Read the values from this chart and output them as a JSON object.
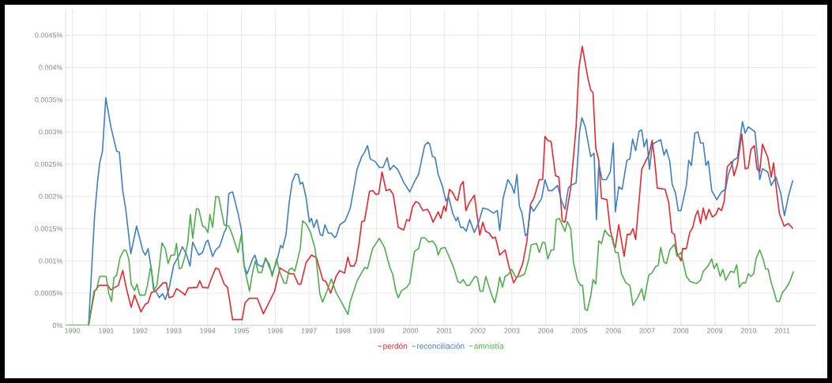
{
  "chart_data": {
    "type": "line",
    "xlim": [
      1989.8,
      2012
    ],
    "ylim": [
      0,
      0.0049
    ],
    "xticks": [
      1990,
      1991,
      1992,
      1993,
      1994,
      1995,
      1996,
      1997,
      1998,
      1999,
      2000,
      2001,
      2002,
      2003,
      2004,
      2005,
      2006,
      2007,
      2008,
      2009,
      2010,
      2011
    ],
    "yticks": [
      {
        "value": 0,
        "label": "0%"
      },
      {
        "value": 0.0005,
        "label": "0.0005%"
      },
      {
        "value": 0.001,
        "label": "0.001%"
      },
      {
        "value": 0.0015,
        "label": "0.0015%"
      },
      {
        "value": 0.002,
        "label": "0.002%"
      },
      {
        "value": 0.0025,
        "label": "0.0025%"
      },
      {
        "value": 0.003,
        "label": "0.003%"
      },
      {
        "value": 0.0035,
        "label": "0.0035%"
      },
      {
        "value": 0.004,
        "label": "0.004%"
      },
      {
        "value": 0.0045,
        "label": "0.0045%"
      }
    ],
    "grid": true,
    "legend": "bottom",
    "marker": "none",
    "line_style": "solid",
    "series": [
      {
        "name": "perdón",
        "color": "#e8262b",
        "x": [
          1990.48,
          1990.66,
          1990.79,
          1991.05,
          1991.14,
          1991.26,
          1991.36,
          1991.49,
          1991.6,
          1991.74,
          1991.84,
          1992.03,
          1992.16,
          1992.24,
          1992.34,
          1992.46,
          1992.69,
          1992.78,
          1992.86,
          1992.98,
          1993.08,
          1993.25,
          1993.33,
          1993.43,
          1993.69,
          1993.77,
          1993.85,
          1994.01,
          1994.1,
          1994.24,
          1994.33,
          1994.49,
          1994.59,
          1994.74,
          1995.02,
          1995.11,
          1995.23,
          1995.47,
          1995.65,
          1995.98,
          1996.14,
          1996.26,
          1996.45,
          1996.55,
          1996.68,
          1996.76,
          1996.91,
          1997.07,
          1997.22,
          1997.41,
          1997.5,
          1997.64,
          1997.8,
          1997.91,
          1998.05,
          1998.15,
          1998.22,
          1998.33,
          1998.4,
          1998.48,
          1998.56,
          1998.64,
          1998.79,
          1998.89,
          1998.98,
          1999.06,
          1999.16,
          1999.28,
          1999.39,
          1999.49,
          1999.64,
          1999.8,
          1999.89,
          1999.97,
          2000.06,
          2000.16,
          2000.24,
          2000.37,
          2000.5,
          2000.57,
          2000.67,
          2000.82,
          2000.9,
          2000.99,
          2001.05,
          2001.15,
          2001.25,
          2001.35,
          2001.4,
          2001.48,
          2001.56,
          2001.64,
          2001.74,
          2001.89,
          2002.05,
          2002.14,
          2002.22,
          2002.33,
          2002.43,
          2002.51,
          2002.64,
          2002.8,
          2002.91,
          2003.05,
          2003.19,
          2003.32,
          2003.44,
          2003.55,
          2003.65,
          2003.81,
          2003.91,
          2003.98,
          2004.06,
          2004.16,
          2004.29,
          2004.39,
          2004.49,
          2004.57,
          2004.74,
          2004.9,
          2004.98,
          2005.08,
          2005.25,
          2005.33,
          2005.4,
          2005.48,
          2005.57,
          2005.65,
          2005.81,
          2005.91,
          2006.01,
          2006.06,
          2006.16,
          2006.32,
          2006.41,
          2006.5,
          2006.58,
          2006.66,
          2006.76,
          2006.84,
          2006.95,
          2007.05,
          2007.15,
          2007.22,
          2007.3,
          2007.53,
          2007.64,
          2007.73,
          2007.81,
          2007.88,
          2008.0,
          2008.05,
          2008.16,
          2008.26,
          2008.35,
          2008.43,
          2008.5,
          2008.58,
          2008.66,
          2008.74,
          2008.83,
          2008.93,
          2009.03,
          2009.11,
          2009.2,
          2009.28,
          2009.37,
          2009.5,
          2009.57,
          2009.67,
          2009.8,
          2009.9,
          2009.99,
          2010.07,
          2010.17,
          2010.25,
          2010.33,
          2010.41,
          2010.57,
          2010.67,
          2010.74,
          2010.81,
          2010.91,
          2011.05,
          2011.18,
          2011.31
        ],
        "values": [
          0,
          0.00053,
          0.00062,
          0.00062,
          0.00055,
          0.00059,
          0.00062,
          0.00085,
          0.00057,
          0.00028,
          0.00047,
          0.00021,
          0.00033,
          0.00035,
          0.00051,
          0.00053,
          0.00066,
          0.00066,
          0.00043,
          0.00045,
          0.00057,
          0.00051,
          0.00047,
          0.00058,
          0.00059,
          0.00069,
          0.00059,
          0.00058,
          0.00071,
          0.00089,
          0.00087,
          0.00064,
          0.00059,
          9e-05,
          9e-05,
          0.00035,
          0.00042,
          0.00042,
          0.00018,
          0.00053,
          0.00089,
          0.00085,
          0.0008,
          0.0008,
          0.00064,
          0.00064,
          0.00097,
          0.00109,
          0.00105,
          0.0007,
          0.00068,
          0.0005,
          0.00076,
          0.00085,
          0.00081,
          0.00106,
          0.00092,
          0.00092,
          0.001,
          0.00127,
          0.00161,
          0.00162,
          0.00208,
          0.00209,
          0.00203,
          0.00204,
          0.00238,
          0.00209,
          0.00211,
          0.00203,
          0.00152,
          0.00148,
          0.00164,
          0.00162,
          0.00184,
          0.00192,
          0.0019,
          0.00178,
          0.0018,
          0.00174,
          0.0016,
          0.00176,
          0.00166,
          0.00185,
          0.00177,
          0.00211,
          0.00206,
          0.00195,
          0.00194,
          0.00217,
          0.00223,
          0.00178,
          0.0019,
          0.00202,
          0.0014,
          0.0016,
          0.00146,
          0.00143,
          0.00135,
          0.00137,
          0.00109,
          0.00117,
          0.00092,
          0.00066,
          0.00078,
          0.00096,
          0.00129,
          0.00188,
          0.00197,
          0.00226,
          0.00226,
          0.00293,
          0.00287,
          0.00285,
          0.00232,
          0.0023,
          0.00162,
          0.0016,
          0.00213,
          0.00308,
          0.00398,
          0.00433,
          0.00383,
          0.00365,
          0.00361,
          0.00275,
          0.00256,
          0.00197,
          0.00195,
          0.00148,
          0.00125,
          0.00121,
          0.00156,
          0.00107,
          0.00141,
          0.00141,
          0.0015,
          0.00133,
          0.00193,
          0.00242,
          0.00254,
          0.00264,
          0.00287,
          0.00258,
          0.00213,
          0.00211,
          0.0019,
          0.00144,
          0.00141,
          0.00113,
          0.001,
          0.00119,
          0.00119,
          0.00144,
          0.00152,
          0.0017,
          0.00178,
          0.00158,
          0.00182,
          0.00164,
          0.0018,
          0.00168,
          0.00172,
          0.00182,
          0.00178,
          0.00193,
          0.00246,
          0.00254,
          0.00232,
          0.0025,
          0.00297,
          0.00243,
          0.00244,
          0.00273,
          0.00279,
          0.00243,
          0.00238,
          0.00281,
          0.0026,
          0.0023,
          0.00252,
          0.00217,
          0.00174,
          0.00154,
          0.00158,
          0.0015
        ]
      },
      {
        "name": "reconciliación",
        "color": "#3e7fc1",
        "x": [
          1990.48,
          1990.66,
          1990.75,
          1990.81,
          1990.89,
          1990.99,
          1991.14,
          1991.31,
          1991.39,
          1991.49,
          1991.58,
          1991.73,
          1991.9,
          1992.09,
          1992.16,
          1992.24,
          1992.34,
          1992.4,
          1992.47,
          1992.57,
          1992.67,
          1992.75,
          1992.86,
          1993.0,
          1993.16,
          1993.25,
          1993.37,
          1993.48,
          1993.56,
          1993.74,
          1993.85,
          1993.95,
          1994.01,
          1994.15,
          1994.24,
          1994.36,
          1994.49,
          1994.55,
          1994.63,
          1994.74,
          1994.9,
          1995.0,
          1995.08,
          1995.17,
          1995.33,
          1995.4,
          1995.48,
          1995.62,
          1995.73,
          1995.91,
          1996.04,
          1996.16,
          1996.22,
          1996.32,
          1996.41,
          1996.5,
          1996.6,
          1996.68,
          1996.74,
          1996.81,
          1996.91,
          1997.01,
          1997.07,
          1997.14,
          1997.23,
          1997.33,
          1997.4,
          1997.47,
          1997.57,
          1997.66,
          1997.76,
          1997.81,
          1997.91,
          1998.07,
          1998.22,
          1998.34,
          1998.42,
          1998.56,
          1998.65,
          1998.73,
          1998.81,
          1998.96,
          1999.08,
          1999.19,
          1999.31,
          1999.39,
          1999.5,
          1999.62,
          1999.81,
          1999.98,
          2000.12,
          2000.24,
          2000.32,
          2000.42,
          2000.51,
          2000.57,
          2000.65,
          2000.73,
          2000.82,
          2000.94,
          2001.05,
          2001.13,
          2001.25,
          2001.35,
          2001.4,
          2001.48,
          2001.56,
          2001.65,
          2001.75,
          2001.89,
          2002.02,
          2002.14,
          2002.29,
          2002.45,
          2002.57,
          2002.64,
          2002.74,
          2002.88,
          2002.99,
          2003.07,
          2003.15,
          2003.22,
          2003.3,
          2003.4,
          2003.46,
          2003.56,
          2003.64,
          2003.81,
          2003.88,
          2003.98,
          2004.08,
          2004.19,
          2004.35,
          2004.47,
          2004.57,
          2004.67,
          2004.74,
          2004.9,
          2005.0,
          2005.07,
          2005.17,
          2005.33,
          2005.43,
          2005.5,
          2005.57,
          2005.67,
          2005.79,
          2005.91,
          2006.0,
          2006.06,
          2006.16,
          2006.26,
          2006.4,
          2006.49,
          2006.57,
          2006.66,
          2006.76,
          2006.84,
          2006.91,
          2006.99,
          2007.07,
          2007.15,
          2007.22,
          2007.4,
          2007.5,
          2007.57,
          2007.67,
          2007.74,
          2007.84,
          2007.92,
          2008.0,
          2008.16,
          2008.23,
          2008.31,
          2008.41,
          2008.5,
          2008.58,
          2008.66,
          2008.74,
          2008.81,
          2008.91,
          2009.06,
          2009.2,
          2009.32,
          2009.4,
          2009.55,
          2009.67,
          2009.74,
          2009.82,
          2009.9,
          2009.99,
          2010.12,
          2010.19,
          2010.33,
          2010.41,
          2010.57,
          2010.67,
          2010.81,
          2010.95,
          2011.06,
          2011.18,
          2011.31
        ],
        "values": [
          0,
          0.00172,
          0.00225,
          0.00252,
          0.0027,
          0.00353,
          0.00308,
          0.0027,
          0.00269,
          0.00209,
          0.0018,
          0.00111,
          0.00154,
          0.00115,
          0.00109,
          0.00119,
          0.00086,
          0.00055,
          0.00053,
          0.00043,
          0.00049,
          0.0004,
          0.00057,
          0.00094,
          0.00109,
          0.00122,
          0.00111,
          0.00092,
          0.00129,
          0.00109,
          0.00113,
          0.00129,
          0.00132,
          0.00107,
          0.00117,
          0.00123,
          0.00144,
          0.0015,
          0.00205,
          0.00207,
          0.00174,
          0.00148,
          0.00092,
          0.0008,
          0.00103,
          0.00109,
          0.00094,
          0.00091,
          0.00103,
          0.0008,
          0.00098,
          0.00124,
          0.0012,
          0.00141,
          0.00189,
          0.00222,
          0.00235,
          0.00234,
          0.00219,
          0.00222,
          0.00199,
          0.0016,
          0.00166,
          0.00152,
          0.00164,
          0.00141,
          0.00139,
          0.00156,
          0.00143,
          0.00143,
          0.00136,
          0.00139,
          0.00156,
          0.00162,
          0.00182,
          0.00217,
          0.00242,
          0.00262,
          0.00269,
          0.00279,
          0.00258,
          0.00254,
          0.00245,
          0.00245,
          0.0026,
          0.00241,
          0.00248,
          0.00242,
          0.00221,
          0.00207,
          0.00223,
          0.00234,
          0.00254,
          0.00279,
          0.00284,
          0.00281,
          0.00262,
          0.0026,
          0.00234,
          0.00217,
          0.00193,
          0.00199,
          0.00174,
          0.00162,
          0.00168,
          0.00152,
          0.00152,
          0.00146,
          0.00164,
          0.00144,
          0.0016,
          0.00182,
          0.0018,
          0.00174,
          0.00178,
          0.00147,
          0.00197,
          0.00226,
          0.00217,
          0.00205,
          0.00234,
          0.00185,
          0.00174,
          0.00139,
          0.00143,
          0.00185,
          0.00177,
          0.00191,
          0.00197,
          0.00226,
          0.00209,
          0.00209,
          0.00217,
          0.00193,
          0.0018,
          0.00213,
          0.00217,
          0.00221,
          0.003,
          0.00322,
          0.00308,
          0.00262,
          0.00267,
          0.00164,
          0.0025,
          0.00226,
          0.00226,
          0.00238,
          0.00283,
          0.00176,
          0.00215,
          0.00211,
          0.00256,
          0.00258,
          0.00289,
          0.00271,
          0.00301,
          0.00303,
          0.00277,
          0.00289,
          0.00242,
          0.00279,
          0.00283,
          0.00288,
          0.00264,
          0.00273,
          0.00254,
          0.00219,
          0.00205,
          0.00178,
          0.00178,
          0.00217,
          0.00256,
          0.00248,
          0.00298,
          0.003,
          0.00283,
          0.00283,
          0.00248,
          0.00255,
          0.00209,
          0.00195,
          0.00207,
          0.00211,
          0.00234,
          0.00256,
          0.0026,
          0.00287,
          0.00316,
          0.00298,
          0.00308,
          0.00303,
          0.003,
          0.00226,
          0.00243,
          0.00238,
          0.00217,
          0.0023,
          0.00205,
          0.0017,
          0.00201,
          0.00225
        ]
      },
      {
        "name": "amnistía",
        "color": "#4eae4b",
        "x": [
          1989.82,
          1990.48,
          1990.64,
          1990.71,
          1990.81,
          1991.0,
          1991.08,
          1991.16,
          1991.23,
          1991.31,
          1991.41,
          1991.53,
          1991.59,
          1991.67,
          1991.74,
          1991.84,
          1991.91,
          1991.99,
          1992.15,
          1992.22,
          1992.32,
          1992.42,
          1992.5,
          1992.57,
          1992.65,
          1992.75,
          1992.83,
          1992.92,
          1993.02,
          1993.08,
          1993.16,
          1993.23,
          1993.33,
          1993.41,
          1993.49,
          1993.56,
          1993.67,
          1993.74,
          1993.85,
          1993.93,
          1994.01,
          1994.07,
          1994.15,
          1994.24,
          1994.33,
          1994.49,
          1994.63,
          1994.74,
          1994.9,
          1995.0,
          1995.08,
          1995.24,
          1995.33,
          1995.41,
          1995.5,
          1995.6,
          1995.71,
          1995.83,
          1995.91,
          1996.04,
          1996.14,
          1996.26,
          1996.33,
          1996.41,
          1996.49,
          1996.58,
          1996.74,
          1996.81,
          1996.91,
          1997.03,
          1997.18,
          1997.32,
          1997.4,
          1997.53,
          1997.66,
          1997.8,
          1997.95,
          1998.15,
          1998.22,
          1998.43,
          1998.56,
          1998.65,
          1998.73,
          1998.81,
          1998.88,
          1999.08,
          1999.23,
          1999.39,
          1999.47,
          1999.57,
          1999.64,
          1999.74,
          1999.89,
          1999.98,
          2000.12,
          2000.24,
          2000.32,
          2000.42,
          2000.55,
          2000.65,
          2000.76,
          2000.82,
          2000.9,
          2001.02,
          2001.09,
          2001.17,
          2001.29,
          2001.4,
          2001.48,
          2001.56,
          2001.66,
          2001.74,
          2001.91,
          2001.98,
          2002.06,
          2002.14,
          2002.23,
          2002.31,
          2002.39,
          2002.49,
          2002.57,
          2002.64,
          2002.72,
          2002.8,
          2002.9,
          2002.99,
          2003.11,
          2003.24,
          2003.38,
          2003.5,
          2003.57,
          2003.73,
          2003.81,
          2003.91,
          2003.98,
          2004.06,
          2004.16,
          2004.24,
          2004.31,
          2004.4,
          2004.47,
          2004.57,
          2004.64,
          2004.74,
          2004.82,
          2004.94,
          2005.03,
          2005.09,
          2005.16,
          2005.23,
          2005.33,
          2005.4,
          2005.48,
          2005.57,
          2005.65,
          2005.75,
          2005.87,
          2005.98,
          2006.06,
          2006.14,
          2006.24,
          2006.37,
          2006.49,
          2006.58,
          2006.72,
          2006.84,
          2006.91,
          2007.05,
          2007.15,
          2007.25,
          2007.33,
          2007.4,
          2007.5,
          2007.57,
          2007.67,
          2007.81,
          2007.88,
          2008.0,
          2008.16,
          2008.27,
          2008.46,
          2008.58,
          2008.66,
          2008.8,
          2008.91,
          2008.98,
          2009.06,
          2009.16,
          2009.24,
          2009.32,
          2009.47,
          2009.57,
          2009.65,
          2009.73,
          2009.82,
          2009.91,
          2009.99,
          2010.07,
          2010.15,
          2010.22,
          2010.33,
          2010.43,
          2010.5,
          2010.58,
          2010.67,
          2010.75,
          2010.83,
          2010.91,
          2011.0,
          2011.1,
          2011.22,
          2011.33
        ],
        "values": [
          0,
          0,
          0.00053,
          0.00055,
          0.00076,
          0.00076,
          0.00049,
          0.00037,
          0.00074,
          0.00078,
          0.00105,
          0.00117,
          0.00116,
          0.00103,
          0.00064,
          0.00054,
          0.00064,
          0.00047,
          0.00047,
          0.00062,
          0.00092,
          0.00055,
          0.00062,
          0.0009,
          0.00128,
          0.00119,
          0.00096,
          0.00109,
          0.00109,
          0.00127,
          0.00088,
          0.00089,
          0.00107,
          0.00127,
          0.00172,
          0.00135,
          0.00181,
          0.0018,
          0.00154,
          0.00152,
          0.00144,
          0.00172,
          0.00152,
          0.002,
          0.00199,
          0.00156,
          0.00154,
          0.00139,
          0.00113,
          0.00141,
          0.00092,
          0.00053,
          0.00082,
          0.001,
          0.00082,
          0.00082,
          0.00105,
          0.00094,
          0.00076,
          0.00103,
          0.00082,
          0.00066,
          0.00065,
          0.00086,
          0.00089,
          0.00084,
          0.00119,
          0.00162,
          0.00158,
          0.00146,
          0.00119,
          0.00049,
          0.00036,
          0.00053,
          0.00072,
          0.00051,
          0.00037,
          0.00017,
          0.00037,
          0.0007,
          0.00082,
          0.0009,
          0.00088,
          0.00105,
          0.00119,
          0.00135,
          0.00121,
          0.0009,
          0.0008,
          0.00053,
          0.00043,
          0.00054,
          0.00059,
          0.00066,
          0.00115,
          0.00119,
          0.00136,
          0.00136,
          0.00129,
          0.00131,
          0.00123,
          0.00109,
          0.00119,
          0.00121,
          0.00113,
          0.00103,
          0.00088,
          0.00068,
          0.00066,
          0.00071,
          0.00062,
          0.00062,
          0.00076,
          0.00074,
          0.00053,
          0.00053,
          0.00076,
          0.00062,
          0.00049,
          0.00035,
          0.00053,
          0.00075,
          0.00059,
          0.00076,
          0.00079,
          0.00087,
          0.00075,
          0.00076,
          0.0008,
          0.00103,
          0.00125,
          0.00127,
          0.00113,
          0.00129,
          0.00128,
          0.00103,
          0.00117,
          0.00117,
          0.00164,
          0.00166,
          0.00158,
          0.00146,
          0.00161,
          0.0015,
          0.00098,
          0.0007,
          0.00062,
          0.00062,
          0.00025,
          0.00023,
          0.00045,
          0.00071,
          0.00064,
          0.00131,
          0.00127,
          0.00148,
          0.00139,
          0.00137,
          0.00113,
          0.00113,
          0.0008,
          0.00066,
          0.00062,
          0.00031,
          0.00043,
          0.00057,
          0.00039,
          0.00078,
          0.00082,
          0.00091,
          0.00093,
          0.00121,
          0.00098,
          0.00096,
          0.00117,
          0.00126,
          0.00107,
          0.00113,
          0.00076,
          0.00068,
          0.00065,
          0.0007,
          0.00084,
          0.00092,
          0.00103,
          0.00088,
          0.00096,
          0.00076,
          0.00087,
          0.0007,
          0.00084,
          0.00082,
          0.00094,
          0.00059,
          0.00066,
          0.00066,
          0.0008,
          0.00076,
          0.0008,
          0.00103,
          0.00117,
          0.00103,
          0.00088,
          0.00087,
          0.00066,
          0.00053,
          0.00037,
          0.00037,
          0.00051,
          0.00057,
          0.00068,
          0.00084
        ]
      }
    ]
  }
}
